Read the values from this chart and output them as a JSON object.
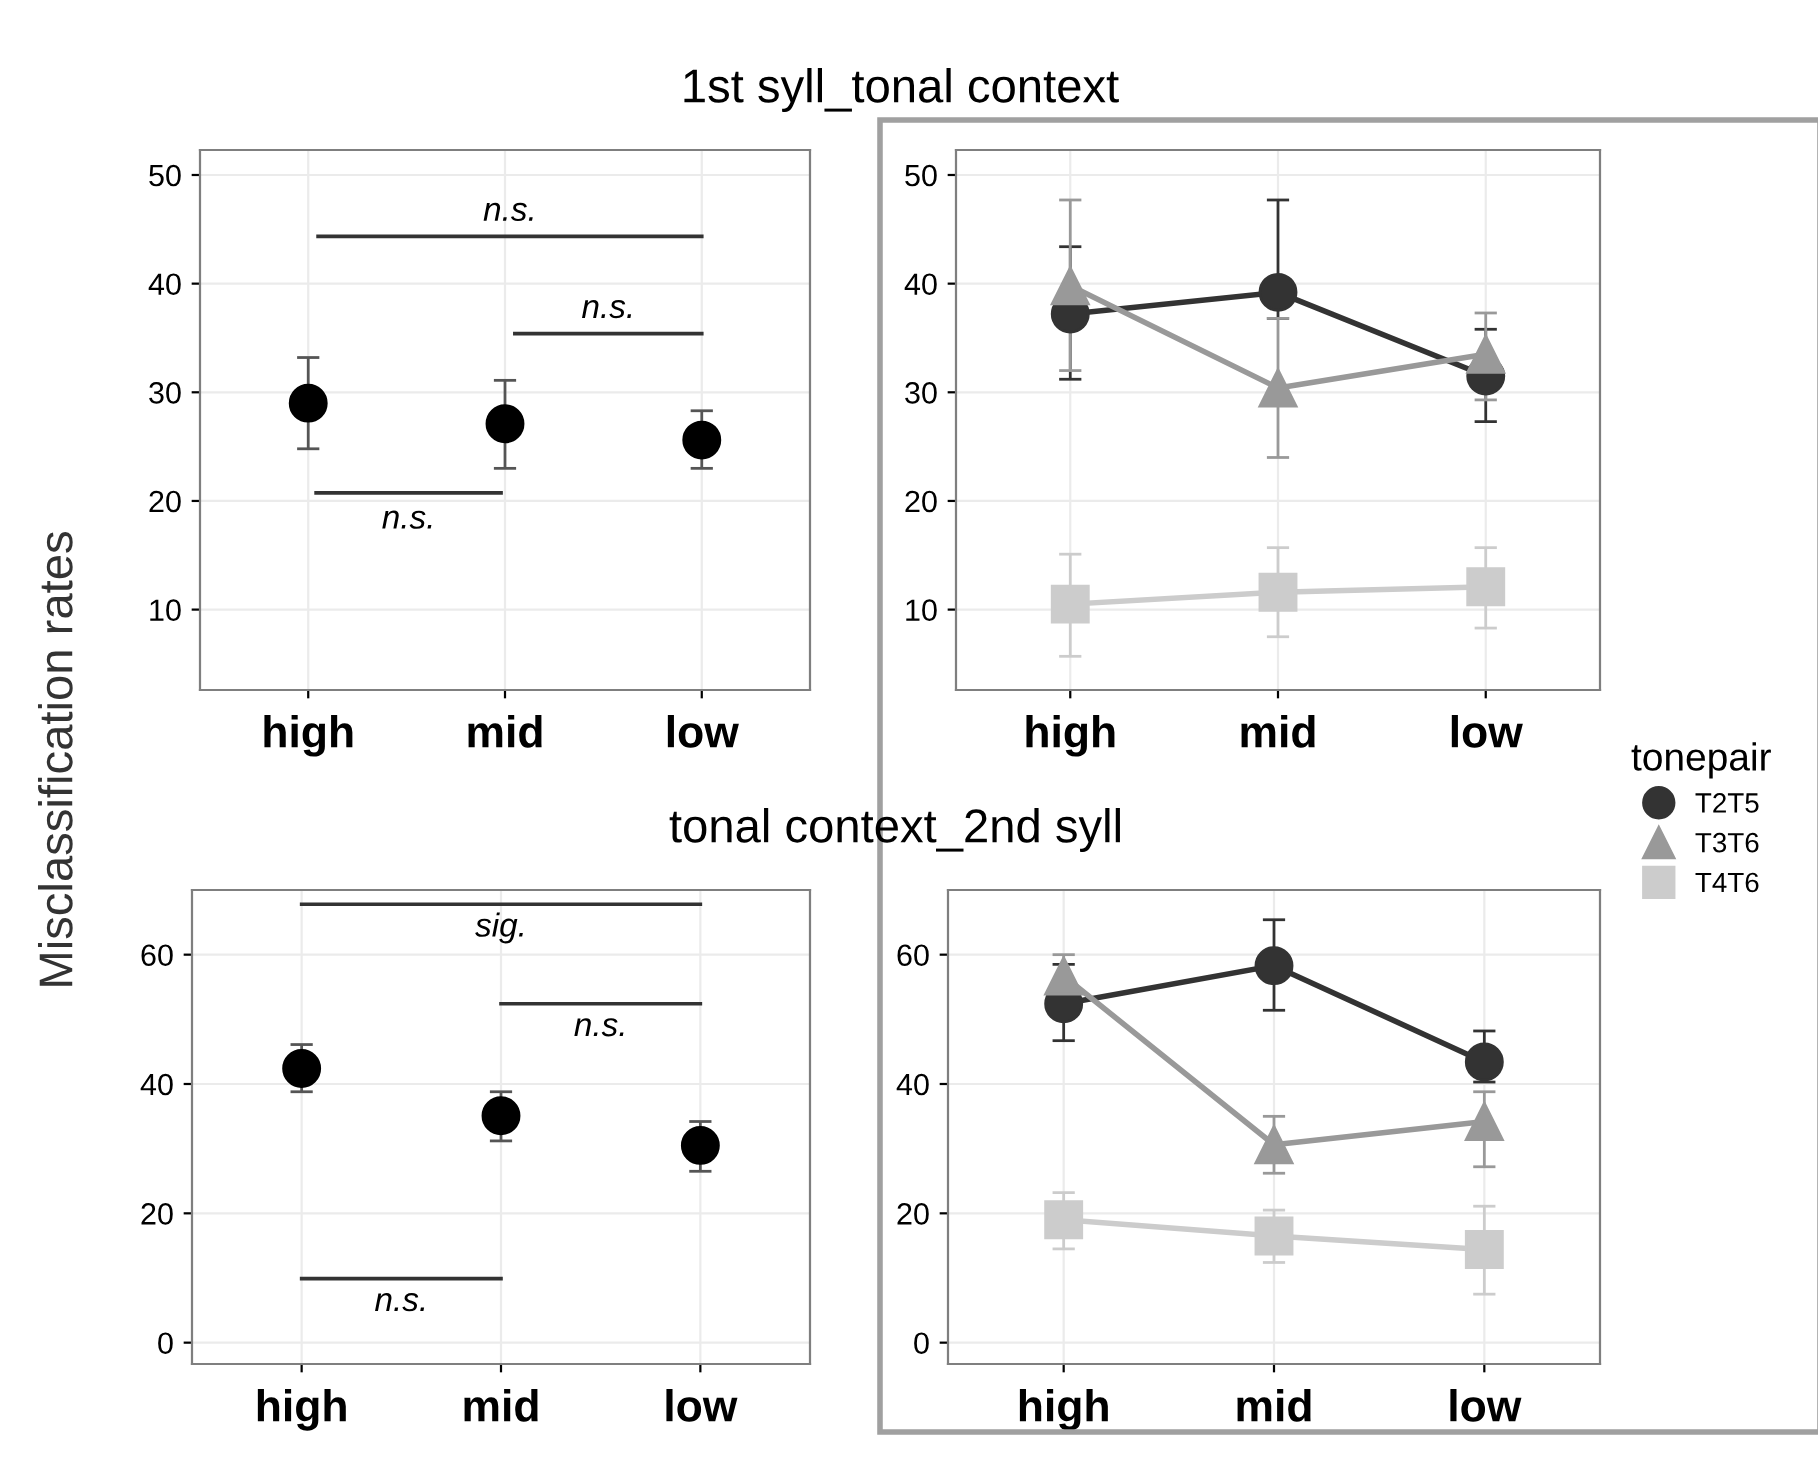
{
  "chart_data": [
    {
      "type": "scatter",
      "title": "1st syll_tonal context",
      "ylabel": "Misclassification rates",
      "categories": [
        "high",
        "mid",
        "low"
      ],
      "values": [
        29.0,
        27.1,
        25.6
      ],
      "errors": [
        [
          24.8,
          33.2
        ],
        [
          23.0,
          31.1
        ],
        [
          23.0,
          28.3
        ]
      ],
      "color": "#000000",
      "marker": "circle",
      "ylim": [
        2.6,
        52.3
      ],
      "yticks": [
        10,
        20,
        30,
        40,
        50
      ],
      "grid": true,
      "annotations": [
        "n.s.",
        "n.s.",
        "n.s."
      ]
    },
    {
      "type": "line",
      "categories": [
        "high",
        "mid",
        "low"
      ],
      "legend_title": "tonepair",
      "legend": "right",
      "ylim": [
        2.6,
        52.3
      ],
      "yticks": [
        10,
        20,
        30,
        40,
        50
      ],
      "grid": true,
      "series": [
        {
          "name": "T2T5",
          "color": "#333333",
          "marker": "circle",
          "values": [
            37.2,
            39.2,
            31.5
          ],
          "errors": [
            [
              31.2,
              43.4
            ],
            [
              36.8,
              47.7
            ],
            [
              27.3,
              35.8
            ]
          ]
        },
        {
          "name": "T3T6",
          "color": "#999999",
          "marker": "triangle",
          "values": [
            39.8,
            30.4,
            33.5
          ],
          "errors": [
            [
              32.0,
              47.7
            ],
            [
              24.0,
              36.8
            ],
            [
              29.3,
              37.3
            ]
          ]
        },
        {
          "name": "T4T6",
          "color": "#cccccc",
          "marker": "square",
          "values": [
            10.5,
            11.6,
            12.1
          ],
          "errors": [
            [
              5.7,
              15.1
            ],
            [
              7.5,
              15.7
            ],
            [
              8.3,
              15.7
            ]
          ]
        }
      ]
    },
    {
      "type": "scatter",
      "title": "tonal context_2nd syll",
      "categories": [
        "high",
        "mid",
        "low"
      ],
      "values": [
        42.4,
        35.1,
        30.5
      ],
      "errors": [
        [
          38.8,
          46.1
        ],
        [
          31.2,
          38.8
        ],
        [
          26.5,
          34.2
        ]
      ],
      "color": "#000000",
      "marker": "circle",
      "ylim": [
        -3.3,
        70
      ],
      "yticks": [
        0,
        20,
        40,
        60
      ],
      "grid": true,
      "annotations": [
        "sig.",
        "n.s.",
        "n.s."
      ]
    },
    {
      "type": "line",
      "categories": [
        "high",
        "mid",
        "low"
      ],
      "ylim": [
        -3.3,
        70
      ],
      "yticks": [
        0,
        20,
        40,
        60
      ],
      "grid": true,
      "series": [
        {
          "color": "#333333",
          "marker": "circle",
          "values": [
            52.4,
            58.3,
            43.4
          ],
          "errors": [
            [
              46.7,
              58.5
            ],
            [
              51.4,
              65.4
            ],
            [
              40.3,
              48.2
            ]
          ]
        },
        {
          "color": "#999999",
          "marker": "triangle",
          "values": [
            56.7,
            30.6,
            34.2
          ],
          "errors": [
            [
              53.0,
              60.0
            ],
            [
              26.2,
              35.0
            ],
            [
              27.2,
              38.8
            ]
          ]
        },
        {
          "color": "#cccccc",
          "marker": "square",
          "values": [
            19.0,
            16.5,
            14.4
          ],
          "errors": [
            [
              14.5,
              23.2
            ],
            [
              12.4,
              20.5
            ],
            [
              7.5,
              21.1
            ]
          ]
        }
      ]
    }
  ]
}
